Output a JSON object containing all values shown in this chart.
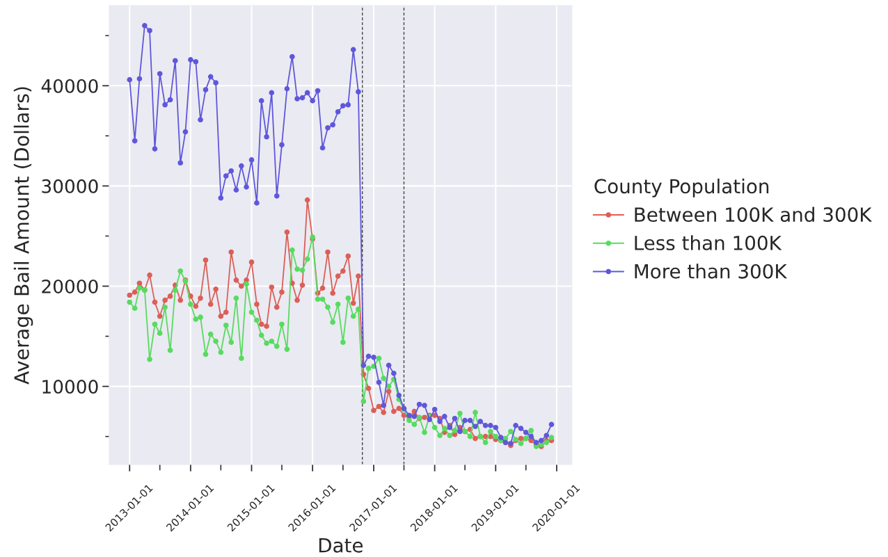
{
  "chart_data": {
    "type": "line",
    "xlabel": "Date",
    "ylabel": "Average Bail Amount (Dollars)",
    "legend_title": "County Population",
    "legend": "right",
    "grid": true,
    "marker": "circle",
    "line_style": "solid",
    "x": [
      "2013-01",
      "2013-02",
      "2013-03",
      "2013-04",
      "2013-05",
      "2013-06",
      "2013-07",
      "2013-08",
      "2013-09",
      "2013-10",
      "2013-11",
      "2013-12",
      "2014-01",
      "2014-02",
      "2014-03",
      "2014-04",
      "2014-05",
      "2014-06",
      "2014-07",
      "2014-08",
      "2014-09",
      "2014-10",
      "2014-11",
      "2014-12",
      "2015-01",
      "2015-02",
      "2015-03",
      "2015-04",
      "2015-05",
      "2015-06",
      "2015-07",
      "2015-08",
      "2015-09",
      "2015-10",
      "2015-11",
      "2015-12",
      "2016-01",
      "2016-02",
      "2016-03",
      "2016-04",
      "2016-05",
      "2016-06",
      "2016-07",
      "2016-08",
      "2016-09",
      "2016-10",
      "2016-11",
      "2016-12",
      "2017-01",
      "2017-02",
      "2017-03",
      "2017-04",
      "2017-05",
      "2017-06",
      "2017-07",
      "2017-08",
      "2017-09",
      "2017-10",
      "2017-11",
      "2017-12",
      "2018-01",
      "2018-02",
      "2018-03",
      "2018-04",
      "2018-05",
      "2018-06",
      "2018-07",
      "2018-08",
      "2018-09",
      "2018-10",
      "2018-11",
      "2018-12",
      "2019-01",
      "2019-02",
      "2019-03",
      "2019-04",
      "2019-05",
      "2019-06",
      "2019-07",
      "2019-08",
      "2019-09",
      "2019-10",
      "2019-11",
      "2019-12"
    ],
    "series": [
      {
        "name": "Between 100K and 300K",
        "color": "#db5f57",
        "values": [
          19100,
          19400,
          20300,
          19600,
          21100,
          18400,
          17000,
          18600,
          19000,
          20100,
          18600,
          20600,
          19000,
          18000,
          18800,
          22600,
          18200,
          19700,
          17000,
          17400,
          23400,
          20600,
          20000,
          20600,
          22400,
          18200,
          16200,
          16000,
          19900,
          17900,
          19400,
          25400,
          20300,
          18600,
          20100,
          28600,
          24700,
          19300,
          19800,
          23400,
          19300,
          21000,
          21500,
          23000,
          18300,
          21000,
          11200,
          9800,
          7600,
          8000,
          7400,
          9500,
          7500,
          7800,
          7100,
          6900,
          7500,
          6800,
          6900,
          7100,
          7100,
          6800,
          5400,
          6100,
          5200,
          5900,
          5500,
          5700,
          4800,
          5000,
          5000,
          5000,
          4700,
          4600,
          4400,
          4100,
          4600,
          4800,
          4800,
          4600,
          4100,
          4000,
          4600,
          4600
        ]
      },
      {
        "name": "Less than 100K",
        "color": "#57db5f",
        "values": [
          18400,
          17800,
          19800,
          19600,
          12700,
          16200,
          15300,
          17900,
          13600,
          19600,
          21500,
          20500,
          18200,
          16700,
          16900,
          13200,
          15200,
          14500,
          13400,
          16100,
          14400,
          18800,
          12800,
          20200,
          17400,
          16600,
          15100,
          14300,
          14500,
          14000,
          16200,
          13700,
          23600,
          21700,
          21600,
          22700,
          24900,
          18700,
          18700,
          17900,
          16400,
          18200,
          14400,
          18800,
          17000,
          17700,
          8500,
          11800,
          12000,
          12800,
          10800,
          10000,
          10700,
          8700,
          7700,
          6600,
          6200,
          6900,
          5400,
          7000,
          5900,
          5100,
          5800,
          5100,
          5600,
          7300,
          5500,
          5000,
          7400,
          5000,
          4400,
          5500,
          5000,
          4600,
          4800,
          5500,
          4700,
          4300,
          4800,
          5600,
          4000,
          4200,
          4400,
          4900
        ]
      },
      {
        "name": "More than 300K",
        "color": "#5f57db",
        "values": [
          40600,
          34500,
          40700,
          46000,
          45500,
          33700,
          41200,
          38100,
          38600,
          42500,
          32300,
          35400,
          42600,
          42400,
          36600,
          39600,
          40900,
          40300,
          28800,
          31000,
          31500,
          29600,
          32000,
          29900,
          32600,
          28300,
          38500,
          34900,
          39300,
          29000,
          34100,
          39700,
          42900,
          38700,
          38800,
          39300,
          38500,
          39500,
          33800,
          35800,
          36100,
          37400,
          38000,
          38100,
          43600,
          39400,
          12100,
          13000,
          12900,
          10400,
          8100,
          12100,
          11300,
          9100,
          7800,
          7100,
          7000,
          8200,
          8100,
          6700,
          7700,
          6500,
          7000,
          5900,
          6800,
          5500,
          6600,
          6600,
          6000,
          6500,
          6100,
          6100,
          5900,
          4900,
          4400,
          4300,
          6100,
          5800,
          5400,
          5000,
          4400,
          4600,
          5100,
          6200
        ]
      }
    ],
    "xlim": [
      "2012-09-01",
      "2020-04-01"
    ],
    "ylim": [
      2200,
      48000
    ],
    "xticks": [
      "2013-01-01",
      {
        "value": "2013-07-01",
        "label": null
      },
      "2014-01-01",
      {
        "value": "2014-07-01",
        "label": null
      },
      "2015-01-01",
      {
        "value": "2015-07-01",
        "label": null
      },
      "2016-01-01",
      {
        "value": "2016-07-01",
        "label": null
      },
      "2017-01-01",
      {
        "value": "2017-07-01",
        "label": null
      },
      "2018-01-01",
      {
        "value": "2018-07-01",
        "label": null
      },
      "2019-01-01",
      {
        "value": "2019-07-01",
        "label": null
      },
      "2020-01-01"
    ],
    "yticks": [
      {
        "value": 5000,
        "label": null
      },
      10000,
      {
        "value": 15000,
        "label": null
      },
      20000,
      {
        "value": 25000,
        "label": null
      },
      30000,
      {
        "value": 35000,
        "label": null
      },
      40000,
      {
        "value": 45000,
        "label": null
      }
    ],
    "ref_lines": [
      {
        "axis": "x",
        "value": "2016-10-25",
        "color": "#444444",
        "line_style": "dashed"
      },
      {
        "axis": "x",
        "value": "2017-07-01",
        "color": "#444444",
        "line_style": "dashed"
      }
    ]
  }
}
